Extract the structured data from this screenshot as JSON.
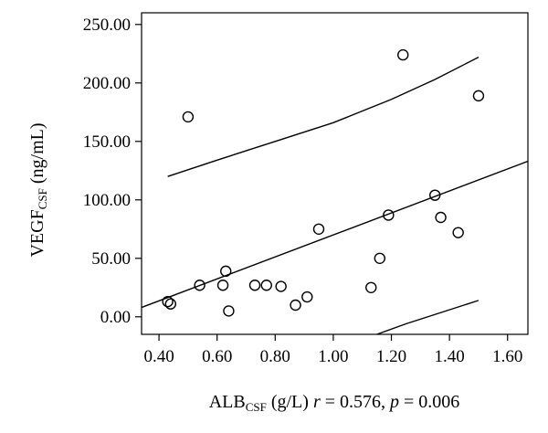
{
  "chart_data": {
    "type": "scatter",
    "xlabel": {
      "main": "ALB",
      "sub": "CSF",
      "unit": " (g/L) ",
      "r_label": "r",
      "r_text": " = 0.576, ",
      "p_label": "p",
      "p_text": " = 0.006"
    },
    "ylabel": {
      "main": "VEGF",
      "sub": "CSF",
      "unit": " (ng/mL)"
    },
    "xlim": [
      0.34,
      1.67
    ],
    "ylim": [
      -15,
      260
    ],
    "xticks": [
      0.4,
      0.6,
      0.8,
      1.0,
      1.2,
      1.4,
      1.6
    ],
    "xtick_labels": [
      "0.40",
      "0.60",
      "0.80",
      "1.00",
      "1.20",
      "1.40",
      "1.60"
    ],
    "yticks": [
      0,
      50,
      100,
      150,
      200,
      250
    ],
    "ytick_labels": [
      "0.00",
      "50.00",
      "100.00",
      "150.00",
      "200.00",
      "250.00"
    ],
    "grid": false,
    "points": [
      {
        "x": 0.43,
        "y": 13
      },
      {
        "x": 0.44,
        "y": 11
      },
      {
        "x": 0.5,
        "y": 171
      },
      {
        "x": 0.54,
        "y": 27
      },
      {
        "x": 0.62,
        "y": 27
      },
      {
        "x": 0.63,
        "y": 39
      },
      {
        "x": 0.64,
        "y": 5
      },
      {
        "x": 0.73,
        "y": 27
      },
      {
        "x": 0.77,
        "y": 27
      },
      {
        "x": 0.82,
        "y": 26
      },
      {
        "x": 0.87,
        "y": 10
      },
      {
        "x": 0.91,
        "y": 17
      },
      {
        "x": 0.95,
        "y": 75
      },
      {
        "x": 1.13,
        "y": 25
      },
      {
        "x": 1.16,
        "y": 50
      },
      {
        "x": 1.19,
        "y": 87
      },
      {
        "x": 1.24,
        "y": 224
      },
      {
        "x": 1.35,
        "y": 104
      },
      {
        "x": 1.37,
        "y": 85
      },
      {
        "x": 1.43,
        "y": 72
      },
      {
        "x": 1.5,
        "y": 189
      }
    ],
    "fit_line": [
      {
        "x": 0.34,
        "y": 8
      },
      {
        "x": 1.67,
        "y": 133
      }
    ],
    "upper_band": [
      {
        "x": 0.43,
        "y": 120
      },
      {
        "x": 0.6,
        "y": 134
      },
      {
        "x": 0.8,
        "y": 150
      },
      {
        "x": 1.0,
        "y": 166
      },
      {
        "x": 1.2,
        "y": 186
      },
      {
        "x": 1.35,
        "y": 203
      },
      {
        "x": 1.5,
        "y": 222
      }
    ],
    "lower_band": [
      {
        "x": 1.15,
        "y": -15
      },
      {
        "x": 1.25,
        "y": -6
      },
      {
        "x": 1.35,
        "y": 2
      },
      {
        "x": 1.5,
        "y": 14
      }
    ]
  }
}
